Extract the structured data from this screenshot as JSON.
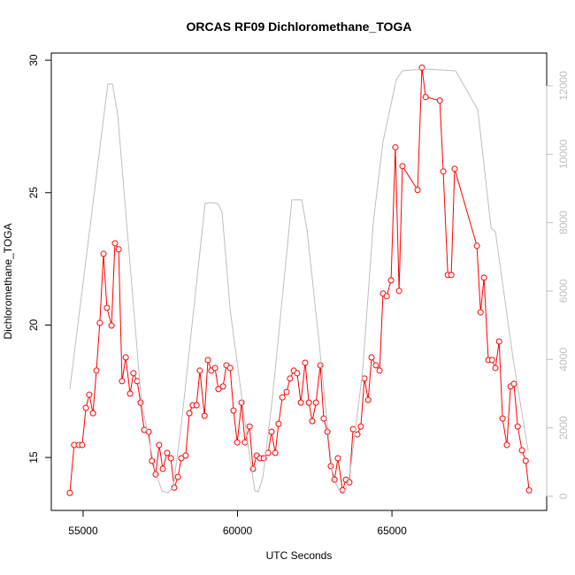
{
  "chart_data": {
    "type": "line",
    "title": "ORCAS RF09 Dichloromethane_TOGA",
    "xlabel": "UTC Seconds",
    "ylabel": "Dichloromethane_TOGA",
    "xlim": [
      53970,
      70010
    ],
    "ylim": [
      13.0,
      30.27
    ],
    "y2lim": [
      -414,
      12956
    ],
    "xticks": [
      55000,
      60000,
      65000
    ],
    "yticks": [
      15,
      20,
      25,
      30
    ],
    "y2ticks": [
      0,
      2000,
      4000,
      6000,
      8000,
      10000,
      12000
    ],
    "series": [
      {
        "color": "#ff0000",
        "marker": "circle",
        "x": [
          54570,
          54710,
          54860,
          54970,
          55090,
          55200,
          55320,
          55430,
          55540,
          55660,
          55770,
          55920,
          56030,
          56150,
          56260,
          56380,
          56520,
          56630,
          56750,
          56860,
          56980,
          57120,
          57230,
          57350,
          57460,
          57580,
          57720,
          57840,
          57950,
          58070,
          58180,
          58320,
          58440,
          58550,
          58670,
          58780,
          58930,
          59040,
          59150,
          59270,
          59380,
          59530,
          59640,
          59760,
          59870,
          59990,
          60130,
          60240,
          60390,
          60500,
          60620,
          60730,
          60850,
          60990,
          61100,
          61220,
          61330,
          61450,
          61590,
          61700,
          61820,
          61930,
          62050,
          62190,
          62310,
          62420,
          62540,
          62680,
          62790,
          62910,
          63020,
          63140,
          63250,
          63400,
          63510,
          63620,
          63740,
          63880,
          63990,
          64110,
          64230,
          64340,
          64480,
          64600,
          64710,
          64830,
          64970,
          65110,
          65230,
          65340,
          65830,
          65970,
          66090,
          66550,
          66660,
          66810,
          66920,
          67030,
          67750,
          67870,
          67980,
          68120,
          68240,
          68350,
          68470,
          68580,
          68720,
          68840,
          68950,
          69070,
          69210,
          69330,
          69440
        ],
        "values": [
          13.66,
          15.47,
          15.47,
          15.47,
          16.87,
          17.37,
          16.67,
          18.28,
          20.08,
          22.69,
          20.65,
          19.98,
          23.09,
          22.86,
          17.88,
          18.78,
          17.41,
          18.18,
          17.88,
          17.07,
          16.04,
          15.97,
          14.87,
          14.36,
          15.47,
          14.57,
          15.17,
          14.97,
          13.86,
          14.26,
          14.97,
          15.07,
          16.67,
          16.97,
          16.97,
          18.28,
          16.57,
          18.68,
          18.28,
          18.38,
          17.58,
          17.68,
          18.48,
          18.38,
          16.77,
          15.57,
          17.07,
          15.57,
          16.17,
          14.57,
          15.07,
          14.97,
          14.97,
          15.17,
          15.97,
          15.17,
          16.27,
          17.27,
          17.47,
          17.98,
          18.28,
          18.18,
          17.07,
          18.58,
          17.07,
          16.37,
          17.07,
          18.48,
          16.47,
          15.97,
          14.67,
          14.16,
          14.97,
          13.76,
          14.16,
          14.06,
          16.07,
          15.87,
          16.17,
          17.98,
          17.17,
          18.78,
          18.48,
          18.28,
          21.19,
          21.09,
          21.69,
          26.71,
          21.29,
          26.0,
          25.1,
          29.72,
          28.61,
          28.48,
          25.8,
          21.89,
          21.89,
          25.9,
          22.99,
          20.48,
          21.79,
          18.68,
          18.68,
          18.38,
          19.38,
          16.47,
          15.47,
          17.68,
          17.78,
          16.17,
          15.27,
          14.87,
          13.76
        ]
      },
      {
        "color": "#bebebe",
        "axis": "y2",
        "x": [
          54570,
          55800,
          55950,
          56120,
          56890,
          57320,
          57550,
          57750,
          57920,
          58180,
          58950,
          59130,
          59360,
          59500,
          59760,
          60330,
          60560,
          60670,
          60820,
          61130,
          61760,
          62080,
          62250,
          62620,
          63080,
          63310,
          63480,
          63620,
          64050,
          64400,
          64710,
          65140,
          65340,
          66060,
          67060,
          67780,
          68210,
          68350,
          68920,
          69410
        ],
        "values": [
          3130,
          12050,
          12050,
          11150,
          2740,
          800,
          155,
          100,
          285,
          2095,
          8560,
          8585,
          8560,
          8300,
          5460,
          1580,
          155,
          130,
          545,
          2870,
          8665,
          8665,
          7785,
          4680,
          545,
          155,
          130,
          545,
          3645,
          8040,
          10370,
          12180,
          12440,
          12490,
          12440,
          11300,
          7835,
          7730,
          4035,
          1320
        ]
      }
    ]
  }
}
